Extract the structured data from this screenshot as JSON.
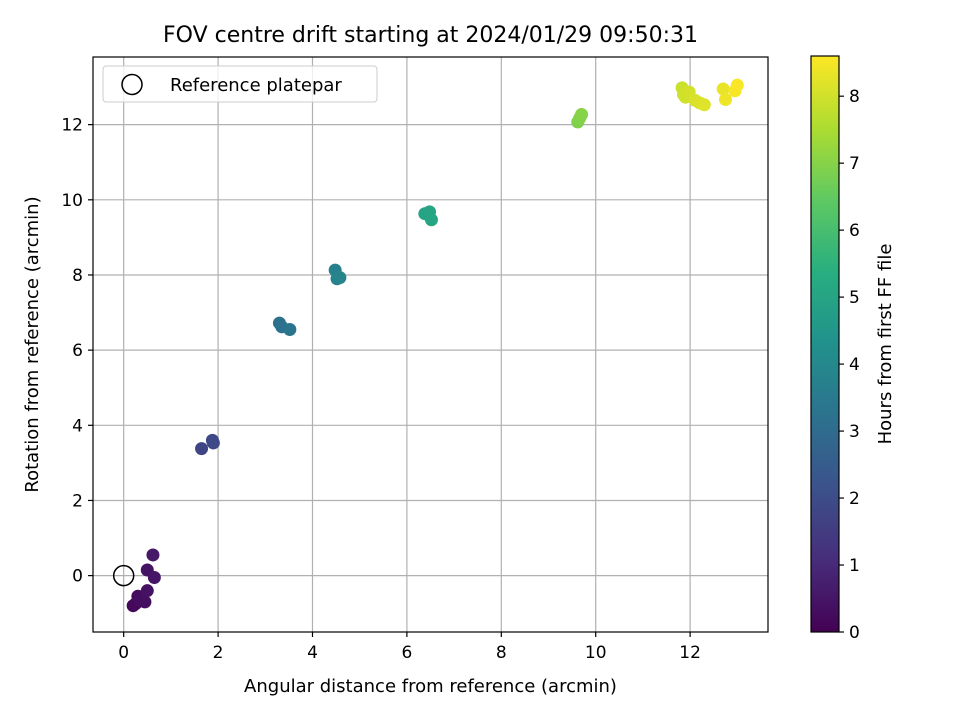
{
  "chart_data": {
    "type": "scatter",
    "title": "FOV centre drift starting at 2024/01/29 09:50:31",
    "xlabel": "Angular distance from reference (arcmin)",
    "ylabel": "Rotation from reference (arcmin)",
    "xlim": [
      -0.65,
      13.65
    ],
    "ylim": [
      -1.5,
      13.8
    ],
    "xticks": [
      "0",
      "2",
      "4",
      "6",
      "8",
      "10",
      "12"
    ],
    "yticks": [
      "0",
      "2",
      "4",
      "6",
      "8",
      "10",
      "12"
    ],
    "grid": true,
    "legend": {
      "placement": "top-left",
      "entries": [
        "Reference platepar"
      ]
    },
    "reference_point": {
      "x": 0,
      "y": 0,
      "label": "Reference platepar"
    },
    "colorbar": {
      "label": "Hours from first FF file",
      "range": [
        0,
        8.6
      ],
      "ticks": [
        "0",
        "1",
        "2",
        "3",
        "4",
        "5",
        "6",
        "7",
        "8"
      ],
      "colormap": "viridis"
    },
    "points": [
      {
        "x": 0.2,
        "y": -0.8,
        "t": 0.15
      },
      {
        "x": 0.25,
        "y": -0.75,
        "t": 0.2
      },
      {
        "x": 0.3,
        "y": -0.55,
        "t": 0.25
      },
      {
        "x": 0.35,
        "y": -0.65,
        "t": 0.3
      },
      {
        "x": 0.45,
        "y": -0.7,
        "t": 0.35
      },
      {
        "x": 0.5,
        "y": -0.4,
        "t": 0.4
      },
      {
        "x": 0.5,
        "y": 0.15,
        "t": 0.45
      },
      {
        "x": 0.65,
        "y": -0.05,
        "t": 0.5
      },
      {
        "x": 0.62,
        "y": 0.55,
        "t": 0.55
      },
      {
        "x": 1.65,
        "y": 3.38,
        "t": 1.75
      },
      {
        "x": 1.88,
        "y": 3.6,
        "t": 1.85
      },
      {
        "x": 1.9,
        "y": 3.53,
        "t": 1.9
      },
      {
        "x": 3.3,
        "y": 6.72,
        "t": 3.15
      },
      {
        "x": 3.35,
        "y": 6.62,
        "t": 3.2
      },
      {
        "x": 3.52,
        "y": 6.55,
        "t": 3.3
      },
      {
        "x": 4.48,
        "y": 8.13,
        "t": 3.75
      },
      {
        "x": 4.52,
        "y": 7.9,
        "t": 3.8
      },
      {
        "x": 4.58,
        "y": 7.93,
        "t": 3.85
      },
      {
        "x": 6.38,
        "y": 9.63,
        "t": 4.95
      },
      {
        "x": 6.48,
        "y": 9.68,
        "t": 5.0
      },
      {
        "x": 6.52,
        "y": 9.47,
        "t": 5.05
      },
      {
        "x": 9.62,
        "y": 12.07,
        "t": 6.9
      },
      {
        "x": 9.66,
        "y": 12.17,
        "t": 6.95
      },
      {
        "x": 9.7,
        "y": 12.27,
        "t": 7.0
      },
      {
        "x": 11.83,
        "y": 12.98,
        "t": 7.9
      },
      {
        "x": 11.86,
        "y": 12.8,
        "t": 7.95
      },
      {
        "x": 11.9,
        "y": 12.73,
        "t": 8.0
      },
      {
        "x": 11.98,
        "y": 12.87,
        "t": 8.05
      },
      {
        "x": 12.1,
        "y": 12.65,
        "t": 8.1
      },
      {
        "x": 12.2,
        "y": 12.58,
        "t": 8.15
      },
      {
        "x": 12.3,
        "y": 12.53,
        "t": 8.2
      },
      {
        "x": 12.7,
        "y": 12.95,
        "t": 8.35
      },
      {
        "x": 12.75,
        "y": 12.67,
        "t": 8.4
      },
      {
        "x": 12.95,
        "y": 12.9,
        "t": 8.5
      },
      {
        "x": 13.0,
        "y": 13.05,
        "t": 8.55
      }
    ]
  }
}
